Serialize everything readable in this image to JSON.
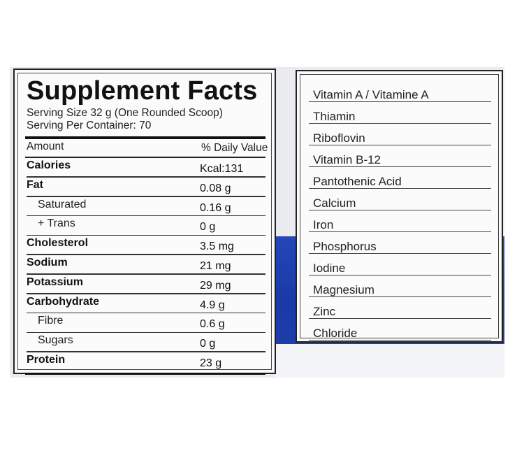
{
  "facts": {
    "title": "Supplement Facts",
    "serving_size": "Serving Size 32 g (One Rounded Scoop)",
    "servings_per_container": "Serving Per Container: 70",
    "col_amount": "Amount",
    "col_daily_value": "% Daily Value",
    "rows": [
      {
        "name": "Calories",
        "value": "Kcal:131",
        "bold": true,
        "indent": false
      },
      {
        "name": "Fat",
        "value": "0.08 g",
        "bold": true,
        "indent": false
      },
      {
        "name": "Saturated",
        "value": "0.16 g",
        "bold": false,
        "indent": true
      },
      {
        "name": "+ Trans",
        "value": "0 g",
        "bold": false,
        "indent": true
      },
      {
        "name": "Cholesterol",
        "value": "3.5 mg",
        "bold": true,
        "indent": false
      },
      {
        "name": "Sodium",
        "value": "21 mg",
        "bold": true,
        "indent": false
      },
      {
        "name": "Potassium",
        "value": "29 mg",
        "bold": true,
        "indent": false
      },
      {
        "name": "Carbohydrate",
        "value": "4.9 g",
        "bold": true,
        "indent": false
      },
      {
        "name": "Fibre",
        "value": "0.6 g",
        "bold": false,
        "indent": true
      },
      {
        "name": "Sugars",
        "value": "0 g",
        "bold": false,
        "indent": true
      },
      {
        "name": "Protein",
        "value": "23 g",
        "bold": true,
        "indent": false
      }
    ]
  },
  "vitamins": {
    "items": [
      "Vitamin A / Vitamine A",
      "Thiamin",
      "Riboflovin",
      "Vitamin B-12",
      "Pantothenic Acid",
      "Calcium",
      "Iron",
      "Phosphorus",
      "Iodine",
      "Magnesium",
      "Zinc",
      "Chloride"
    ]
  },
  "colors": {
    "label_blue": "#1f40ad",
    "panel_bg": "#fbfbfb",
    "text": "#111111"
  }
}
